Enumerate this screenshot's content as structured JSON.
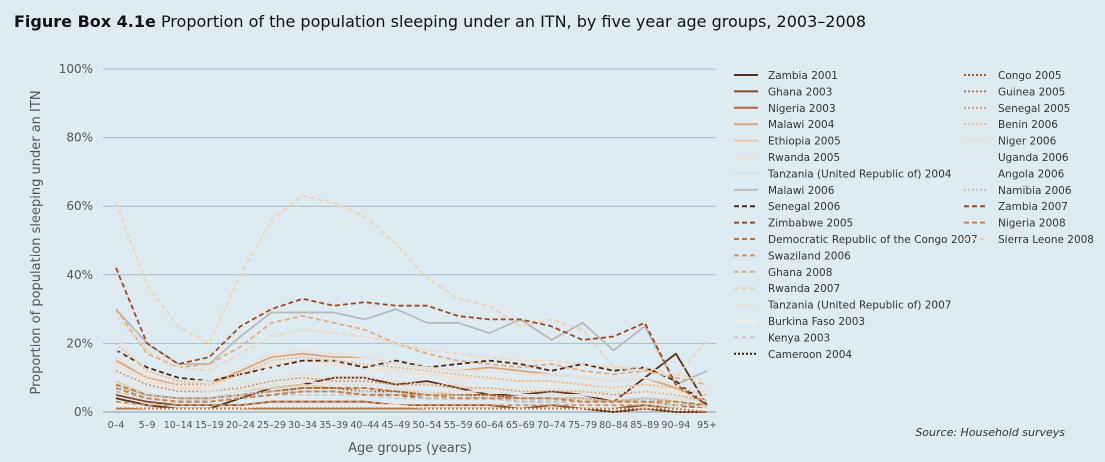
{
  "header": {
    "title_bold": "Figure Box 4.1e",
    "title_rest": "Proportion of the population sleeping under an ITN, by five year age groups, 2003–2008"
  },
  "source": {
    "label": "Source:",
    "text": "Household surveys"
  },
  "chart_data": {
    "type": "line",
    "xlabel": "Age groups (years)",
    "ylabel": "Proportion of population sleeping under an ITN",
    "ylim": [
      0,
      100
    ],
    "yticks": [
      "0%",
      "20%",
      "40%",
      "60%",
      "80%",
      "100%"
    ],
    "grid": true,
    "legend_position": "right",
    "categories": [
      "0–4",
      "5–9",
      "10–14",
      "15–19",
      "20–24",
      "25–29",
      "30–34",
      "35–39",
      "40–44",
      "45–49",
      "50–54",
      "55–59",
      "60–64",
      "65–69",
      "70–74",
      "75–79",
      "80–84",
      "85–89",
      "90–94",
      "95+"
    ],
    "series": [
      {
        "name": "Zambia 2001",
        "color": "#5a2e14",
        "dash": "solid",
        "values": [
          4,
          2,
          1,
          1,
          4,
          7,
          8,
          10,
          10,
          8,
          9,
          7,
          5,
          5,
          6,
          5,
          3,
          10,
          17,
          2
        ]
      },
      {
        "name": "Ghana 2003",
        "color": "#8a4a22",
        "dash": "solid",
        "values": [
          5,
          3,
          2,
          2,
          2,
          3,
          3,
          3,
          3,
          2,
          2,
          2,
          2,
          1,
          2,
          1,
          1,
          2,
          1,
          1
        ]
      },
      {
        "name": "Nigeria 2003",
        "color": "#b06a36",
        "dash": "solid",
        "values": [
          1,
          1,
          1,
          1,
          1,
          1,
          1,
          1,
          1,
          1,
          1,
          1,
          1,
          1,
          1,
          1,
          0,
          1,
          0,
          0
        ]
      },
      {
        "name": "Malawi 2004",
        "color": "#dea577",
        "dash": "solid",
        "values": [
          15,
          10,
          8,
          8,
          12,
          16,
          17,
          16,
          16,
          14,
          13,
          12,
          13,
          12,
          11,
          10,
          9,
          10,
          7,
          3
        ]
      },
      {
        "name": "Ethiopia 2005",
        "color": "#ecc9a2",
        "dash": "solid",
        "values": [
          9,
          5,
          4,
          4,
          6,
          7,
          8,
          7,
          7,
          6,
          6,
          5,
          5,
          4,
          4,
          4,
          3,
          4,
          3,
          2
        ]
      },
      {
        "name": "Rwanda 2005",
        "color": "#f4e0cb",
        "dash": "solid",
        "values": [
          14,
          9,
          7,
          7,
          11,
          14,
          15,
          14,
          13,
          12,
          11,
          10,
          10,
          9,
          9,
          8,
          7,
          8,
          6,
          4
        ]
      },
      {
        "name": "Tanzania (United Republic of) 2004",
        "color": "#d6dde3",
        "dash": "solid",
        "values": [
          8,
          5,
          4,
          4,
          6,
          8,
          9,
          8,
          8,
          7,
          6,
          6,
          6,
          5,
          5,
          5,
          4,
          4,
          4,
          3
        ]
      },
      {
        "name": "Malawi 2006",
        "color": "#b9b7b5",
        "dash": "solid",
        "values": [
          30,
          20,
          14,
          14,
          22,
          29,
          29,
          29,
          27,
          30,
          26,
          26,
          23,
          27,
          21,
          26,
          18,
          25,
          8,
          12
        ]
      },
      {
        "name": "Senegal 2006",
        "color": "#4a2610",
        "dash": "dash",
        "values": [
          18,
          13,
          10,
          9,
          11,
          13,
          15,
          15,
          13,
          15,
          13,
          14,
          15,
          14,
          12,
          14,
          12,
          13,
          9,
          2
        ]
      },
      {
        "name": "Zimbabwe 2005",
        "color": "#8e4c24",
        "dash": "dash",
        "values": [
          6,
          4,
          3,
          3,
          4,
          5,
          6,
          6,
          5,
          5,
          4,
          4,
          4,
          3,
          3,
          3,
          3,
          3,
          2,
          1
        ]
      },
      {
        "name": "Democratic Republic of the Congo 2007",
        "color": "#bb7136",
        "dash": "dash",
        "values": [
          8,
          5,
          4,
          4,
          5,
          6,
          7,
          7,
          7,
          6,
          5,
          5,
          5,
          4,
          4,
          3,
          3,
          3,
          2,
          2
        ]
      },
      {
        "name": "Swaziland 2006",
        "color": "#d09260",
        "dash": "dash",
        "values": [
          3,
          2,
          2,
          2,
          2,
          3,
          3,
          3,
          3,
          2,
          2,
          2,
          2,
          2,
          2,
          2,
          2,
          2,
          1,
          1
        ]
      },
      {
        "name": "Ghana 2008",
        "color": "#e0ac7c",
        "dash": "dash",
        "values": [
          30,
          17,
          13,
          14,
          19,
          26,
          28,
          26,
          24,
          20,
          17,
          15,
          14,
          13,
          14,
          12,
          11,
          12,
          10,
          8
        ]
      },
      {
        "name": "Rwanda 2007",
        "color": "#f0d2b0",
        "dash": "dash",
        "values": [
          61,
          37,
          25,
          20,
          40,
          56,
          63,
          61,
          57,
          49,
          39,
          33,
          31,
          25,
          27,
          24,
          13,
          12,
          10,
          21
        ]
      },
      {
        "name": "Tanzania (United Republic of) 2007",
        "color": "#e8e2da",
        "dash": "solid",
        "values": [
          22,
          12,
          9,
          9,
          13,
          17,
          18,
          17,
          16,
          14,
          13,
          12,
          12,
          11,
          11,
          10,
          9,
          10,
          8,
          6
        ]
      },
      {
        "name": "Burkina Faso 2003",
        "color": "#f2ece4",
        "dash": "solid",
        "values": [
          2,
          1,
          1,
          1,
          1,
          2,
          2,
          2,
          2,
          2,
          1,
          1,
          1,
          1,
          1,
          1,
          1,
          1,
          1,
          1
        ]
      },
      {
        "name": "Kenya 2003",
        "color": "#cdc9c4",
        "dash": "dash",
        "values": [
          6,
          4,
          3,
          3,
          4,
          5,
          5,
          5,
          5,
          4,
          4,
          4,
          4,
          3,
          3,
          3,
          3,
          3,
          2,
          2
        ]
      },
      {
        "name": "Cameroon 2004",
        "color": "#3e200d",
        "dash": "dot",
        "values": [
          1,
          1,
          1,
          1,
          1,
          1,
          1,
          1,
          1,
          1,
          1,
          1,
          1,
          1,
          1,
          1,
          0,
          1,
          0,
          0
        ]
      },
      {
        "name": "Congo 2005",
        "color": "#a85a26",
        "dash": "dot",
        "values": [
          7,
          5,
          4,
          4,
          5,
          6,
          7,
          7,
          6,
          6,
          5,
          5,
          5,
          4,
          4,
          4,
          3,
          4,
          3,
          2
        ]
      },
      {
        "name": "Guinea 2005",
        "color": "#c17b44",
        "dash": "dot",
        "values": [
          1,
          1,
          1,
          1,
          1,
          1,
          1,
          1,
          1,
          1,
          1,
          1,
          1,
          1,
          1,
          1,
          1,
          1,
          1,
          0
        ]
      },
      {
        "name": "Senegal 2005",
        "color": "#d99a68",
        "dash": "dot",
        "values": [
          12,
          8,
          6,
          6,
          7,
          9,
          10,
          9,
          9,
          8,
          8,
          7,
          7,
          6,
          6,
          6,
          5,
          6,
          5,
          3
        ]
      },
      {
        "name": "Benin 2006",
        "color": "#e9bc8e",
        "dash": "dot",
        "values": [
          20,
          12,
          9,
          8,
          11,
          15,
          16,
          15,
          14,
          13,
          12,
          11,
          10,
          9,
          9,
          8,
          7,
          8,
          7,
          5
        ]
      },
      {
        "name": "Niger 2006",
        "color": "#f3d7b6",
        "dash": "dot",
        "values": [
          16,
          10,
          7,
          6,
          8,
          10,
          11,
          10,
          10,
          9,
          8,
          8,
          7,
          7,
          7,
          6,
          6,
          6,
          5,
          4
        ]
      },
      {
        "name": "Uganda 2006",
        "color": "#f5e6d4",
        "dash": "dot",
        "values": [
          11,
          7,
          5,
          5,
          6,
          8,
          9,
          8,
          8,
          7,
          6,
          6,
          6,
          5,
          5,
          5,
          4,
          5,
          4,
          3
        ]
      },
      {
        "name": "Angola 2006",
        "color": "#ece7e1",
        "dash": "dot",
        "values": [
          18,
          11,
          8,
          8,
          10,
          13,
          14,
          13,
          12,
          11,
          10,
          9,
          9,
          8,
          8,
          7,
          7,
          7,
          6,
          4
        ]
      },
      {
        "name": "Namibia 2006",
        "color": "#c6c1bb",
        "dash": "dot",
        "values": [
          7,
          5,
          4,
          4,
          5,
          6,
          6,
          6,
          6,
          5,
          5,
          5,
          4,
          4,
          4,
          4,
          3,
          4,
          3,
          2
        ]
      },
      {
        "name": "Zambia 2007",
        "color": "#9a4a1e",
        "dash": "dash",
        "values": [
          42,
          20,
          14,
          16,
          25,
          30,
          33,
          31,
          32,
          31,
          31,
          28,
          27,
          27,
          25,
          21,
          22,
          26,
          8,
          2
        ]
      },
      {
        "name": "Nigeria 2008",
        "color": "#c98349",
        "dash": "dash",
        "values": [
          7,
          4,
          3,
          3,
          4,
          5,
          6,
          6,
          5,
          5,
          5,
          4,
          4,
          4,
          4,
          3,
          3,
          3,
          3,
          2
        ]
      },
      {
        "name": "Sierra Leone 2008",
        "color": "#edd6bd",
        "dash": "dash",
        "values": [
          28,
          18,
          13,
          12,
          17,
          22,
          24,
          23,
          22,
          20,
          18,
          17,
          16,
          15,
          15,
          14,
          13,
          13,
          11,
          9
        ]
      }
    ]
  }
}
